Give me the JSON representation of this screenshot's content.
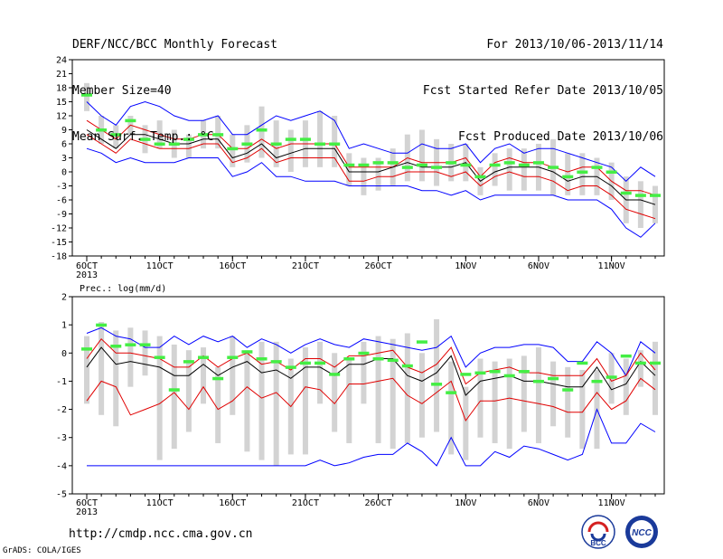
{
  "header": {
    "left": [
      "DERF/NCC/BCC Monthly Forecast",
      "Member Size=40",
      "Mean Surf. Temp.: °C"
    ],
    "right": [
      "For 2013/10/06-2013/11/14",
      "Fcst Started Refer Date 2013/10/05",
      "Fcst Produced Date 2013/10/06"
    ]
  },
  "footer": {
    "url": "http://cmdp.ncc.cma.gov.cn",
    "credit": "GrADS: COLA/IGES",
    "logo_left_text": "BCC",
    "logo_right_text": "NCC"
  },
  "colors": {
    "mean": "#000000",
    "spread": "#e00000",
    "range": "#0000ff",
    "observed": "#44ee44",
    "member_bar": "#d3d3d3"
  },
  "chart_data": [
    {
      "type": "line",
      "title": "",
      "ylabel": "Mean Surf. Temp.: °C",
      "ylim": [
        -18,
        24
      ],
      "yticks": [
        -18,
        -15,
        -12,
        -9,
        -6,
        -3,
        0,
        3,
        6,
        9,
        12,
        15,
        18,
        21,
        24
      ],
      "x": [
        "2013-10-06",
        "2013-10-07",
        "2013-10-08",
        "2013-10-09",
        "2013-10-10",
        "2013-10-11",
        "2013-10-12",
        "2013-10-13",
        "2013-10-14",
        "2013-10-15",
        "2013-10-16",
        "2013-10-17",
        "2013-10-18",
        "2013-10-19",
        "2013-10-20",
        "2013-10-21",
        "2013-10-22",
        "2013-10-23",
        "2013-10-24",
        "2013-10-25",
        "2013-10-26",
        "2013-10-27",
        "2013-10-28",
        "2013-10-29",
        "2013-10-30",
        "2013-10-31",
        "2013-11-01",
        "2013-11-02",
        "2013-11-03",
        "2013-11-04",
        "2013-11-05",
        "2013-11-06",
        "2013-11-07",
        "2013-11-08",
        "2013-11-09",
        "2013-11-10",
        "2013-11-11",
        "2013-11-12",
        "2013-11-13",
        "2013-11-14"
      ],
      "xtick_labels": [
        {
          "x": "2013-10-06",
          "label": "6OCT",
          "sub": "2013"
        },
        {
          "x": "2013-10-11",
          "label": "11OCT"
        },
        {
          "x": "2013-10-16",
          "label": "16OCT"
        },
        {
          "x": "2013-10-21",
          "label": "21OCT"
        },
        {
          "x": "2013-10-26",
          "label": "26OCT"
        },
        {
          "x": "2013-11-01",
          "label": "1NOV"
        },
        {
          "x": "2013-11-06",
          "label": "6NOV"
        },
        {
          "x": "2013-11-11",
          "label": "11NOV"
        }
      ],
      "series": [
        {
          "role": "max",
          "values": [
            15,
            12,
            10,
            14,
            15,
            14,
            12,
            11,
            11,
            12,
            8,
            8,
            10,
            12,
            11,
            12,
            13,
            11,
            5,
            6,
            5,
            4,
            4,
            6,
            5,
            5,
            6,
            2,
            5,
            6,
            4,
            5,
            5,
            4,
            3,
            2,
            1,
            -2,
            1,
            -1
          ]
        },
        {
          "role": "upper",
          "values": [
            11,
            9,
            7,
            10,
            9,
            8,
            7,
            7,
            8,
            8,
            5,
            5,
            7,
            5,
            6,
            6,
            6,
            6,
            1,
            1,
            1,
            1,
            3,
            2,
            2,
            2,
            3,
            -1,
            2,
            3,
            2,
            2,
            1,
            0,
            1,
            1,
            -2,
            -4,
            -4,
            -5
          ]
        },
        {
          "role": "mean",
          "values": [
            9,
            7,
            5,
            8,
            8,
            7,
            6,
            6,
            7,
            7,
            3,
            4,
            6,
            3,
            4,
            5,
            5,
            5,
            0,
            0,
            0,
            1,
            2,
            1,
            1,
            1,
            2,
            -2,
            0,
            1,
            1,
            1,
            0,
            -2,
            -1,
            -1,
            -3,
            -6,
            -6,
            -7
          ]
        },
        {
          "role": "lower",
          "values": [
            8,
            6,
            4,
            7,
            6,
            5,
            5,
            5,
            6,
            6,
            2,
            3,
            5,
            2,
            3,
            3,
            3,
            3,
            -2,
            -2,
            -1,
            -1,
            0,
            0,
            0,
            -1,
            0,
            -3,
            -1,
            0,
            -1,
            -1,
            -2,
            -4,
            -3,
            -3,
            -5,
            -8,
            -9,
            -10
          ]
        },
        {
          "role": "min",
          "values": [
            5,
            4,
            2,
            3,
            2,
            2,
            2,
            3,
            3,
            3,
            -1,
            0,
            2,
            -1,
            -1,
            -2,
            -2,
            -2,
            -3,
            -3,
            -3,
            -3,
            -3,
            -4,
            -4,
            -5,
            -4,
            -6,
            -5,
            -5,
            -5,
            -5,
            -5,
            -6,
            -6,
            -6,
            -8,
            -12,
            -14,
            -11
          ]
        },
        {
          "role": "observed",
          "values": [
            16.5,
            9,
            8,
            11,
            7,
            6,
            6,
            7,
            8,
            8,
            5,
            6,
            9,
            6,
            7,
            7,
            6,
            6,
            1.5,
            1.5,
            2,
            2,
            1,
            1.5,
            1,
            2,
            1.5,
            -1,
            1.5,
            2,
            1.5,
            2,
            1,
            -1,
            0,
            1,
            0,
            -4.5,
            -5,
            -5
          ]
        }
      ],
      "member_range": [
        [
          13,
          19
        ],
        [
          6,
          12
        ],
        [
          5,
          10
        ],
        [
          8,
          12
        ],
        [
          4,
          10
        ],
        [
          5,
          11
        ],
        [
          3,
          9
        ],
        [
          3,
          8
        ],
        [
          5,
          11
        ],
        [
          5,
          12
        ],
        [
          1,
          8
        ],
        [
          2,
          10
        ],
        [
          3,
          14
        ],
        [
          1,
          11
        ],
        [
          0,
          9
        ],
        [
          1,
          11
        ],
        [
          1,
          13
        ],
        [
          1,
          12
        ],
        [
          -3,
          4
        ],
        [
          -5,
          3
        ],
        [
          -4,
          3
        ],
        [
          -3,
          5
        ],
        [
          -2,
          8
        ],
        [
          -2,
          9
        ],
        [
          -3,
          7
        ],
        [
          -2,
          6
        ],
        [
          -2,
          6
        ],
        [
          -5,
          1
        ],
        [
          -3,
          4
        ],
        [
          -4,
          5
        ],
        [
          -4,
          5
        ],
        [
          -4,
          6
        ],
        [
          -5,
          7
        ],
        [
          -5,
          4
        ],
        [
          -5,
          4
        ],
        [
          -5,
          3
        ],
        [
          -6,
          2
        ],
        [
          -11,
          -1
        ],
        [
          -12,
          -2
        ],
        [
          -11,
          -3
        ]
      ]
    },
    {
      "type": "line",
      "title": "",
      "ylabel": "Prec.: log(mm/d)",
      "ylim": [
        -5,
        2
      ],
      "yticks": [
        -5,
        -4,
        -3,
        -2,
        -1,
        0,
        1,
        2
      ],
      "x": [
        "2013-10-06",
        "2013-10-07",
        "2013-10-08",
        "2013-10-09",
        "2013-10-10",
        "2013-10-11",
        "2013-10-12",
        "2013-10-13",
        "2013-10-14",
        "2013-10-15",
        "2013-10-16",
        "2013-10-17",
        "2013-10-18",
        "2013-10-19",
        "2013-10-20",
        "2013-10-21",
        "2013-10-22",
        "2013-10-23",
        "2013-10-24",
        "2013-10-25",
        "2013-10-26",
        "2013-10-27",
        "2013-10-28",
        "2013-10-29",
        "2013-10-30",
        "2013-10-31",
        "2013-11-01",
        "2013-11-02",
        "2013-11-03",
        "2013-11-04",
        "2013-11-05",
        "2013-11-06",
        "2013-11-07",
        "2013-11-08",
        "2013-11-09",
        "2013-11-10",
        "2013-11-11",
        "2013-11-12",
        "2013-11-13",
        "2013-11-14"
      ],
      "xtick_labels": [
        {
          "x": "2013-10-06",
          "label": "6OCT",
          "sub": "2013"
        },
        {
          "x": "2013-10-11",
          "label": "11OCT"
        },
        {
          "x": "2013-10-16",
          "label": "16OCT"
        },
        {
          "x": "2013-10-21",
          "label": "21OCT"
        },
        {
          "x": "2013-10-26",
          "label": "26OCT"
        },
        {
          "x": "2013-11-01",
          "label": "1NOV"
        },
        {
          "x": "2013-11-06",
          "label": "6NOV"
        },
        {
          "x": "2013-11-11",
          "label": "11NOV"
        }
      ],
      "series": [
        {
          "role": "max",
          "values": [
            0.7,
            0.9,
            0.6,
            0.5,
            0.2,
            0.2,
            0.6,
            0.3,
            0.6,
            0.4,
            0.6,
            0.2,
            0.5,
            0.3,
            0,
            0.3,
            0.5,
            0.3,
            0.2,
            0.5,
            0.4,
            0.3,
            0.2,
            0.1,
            0.2,
            0.6,
            -0.5,
            0,
            0.2,
            0.2,
            0.3,
            0.3,
            0.2,
            -0.3,
            -0.3,
            0.4,
            0,
            -0.8,
            0.4,
            0
          ]
        },
        {
          "role": "upper",
          "values": [
            -0.2,
            0.5,
            0,
            0,
            -0.1,
            -0.2,
            -0.5,
            -0.5,
            -0.1,
            -0.5,
            -0.2,
            0,
            -0.4,
            -0.3,
            -0.6,
            -0.2,
            -0.2,
            -0.5,
            -0.1,
            -0.1,
            0,
            0.1,
            -0.5,
            -0.7,
            -0.4,
            0.2,
            -1.1,
            -0.7,
            -0.6,
            -0.5,
            -0.7,
            -0.7,
            -0.8,
            -0.8,
            -0.8,
            -0.2,
            -1,
            -0.8,
            0,
            -0.6
          ]
        },
        {
          "role": "mean",
          "values": [
            -0.5,
            0.2,
            -0.4,
            -0.3,
            -0.4,
            -0.5,
            -0.8,
            -0.8,
            -0.4,
            -0.8,
            -0.5,
            -0.3,
            -0.7,
            -0.6,
            -0.9,
            -0.5,
            -0.5,
            -0.8,
            -0.4,
            -0.4,
            -0.2,
            -0.2,
            -0.8,
            -1,
            -0.7,
            -0.1,
            -1.5,
            -1,
            -0.9,
            -0.8,
            -1,
            -1,
            -1.1,
            -1.2,
            -1.2,
            -0.5,
            -1.3,
            -1.1,
            -0.3,
            -0.8
          ]
        },
        {
          "role": "lower",
          "values": [
            -1.7,
            -1,
            -1.2,
            -2.2,
            -2,
            -1.8,
            -1.4,
            -2,
            -1.2,
            -2,
            -1.7,
            -1.2,
            -1.6,
            -1.4,
            -1.9,
            -1.2,
            -1.3,
            -1.8,
            -1.1,
            -1.1,
            -1,
            -0.9,
            -1.5,
            -1.8,
            -1.4,
            -1,
            -2.4,
            -1.7,
            -1.7,
            -1.6,
            -1.7,
            -1.8,
            -1.9,
            -2.1,
            -2.1,
            -1.4,
            -2,
            -1.7,
            -0.9,
            -1.3
          ]
        },
        {
          "role": "min",
          "values": [
            -4,
            -4,
            -4,
            -4,
            -4,
            -4,
            -4,
            -4,
            -4,
            -4,
            -4,
            -4,
            -4,
            -4,
            -4,
            -4,
            -3.8,
            -4,
            -3.9,
            -3.7,
            -3.6,
            -3.6,
            -3.2,
            -3.5,
            -4,
            -3,
            -4,
            -4,
            -3.5,
            -3.7,
            -3.3,
            -3.4,
            -3.6,
            -3.8,
            -3.6,
            -2,
            -3.2,
            -3.2,
            -2.5,
            -2.8
          ]
        },
        {
          "role": "observed",
          "values": [
            0.15,
            1,
            0.25,
            0.3,
            0.3,
            -0.15,
            -1.3,
            -0.3,
            -0.15,
            -0.9,
            -0.15,
            0.05,
            -0.2,
            -0.3,
            -0.5,
            -0.35,
            -0.35,
            -0.75,
            -0.2,
            0,
            -0.2,
            -0.25,
            -0.45,
            0.4,
            -1.1,
            -1.4,
            -0.75,
            -0.7,
            -0.65,
            -0.8,
            -0.65,
            -1,
            -0.9,
            -1.3,
            -0.35,
            -1,
            -0.85,
            -0.1,
            -0.35,
            -0.35
          ]
        }
      ],
      "member_range": [
        [
          -1.8,
          0.6
        ],
        [
          -2.2,
          1.1
        ],
        [
          -2.6,
          0.8
        ],
        [
          -1.2,
          0.9
        ],
        [
          -0.8,
          0.8
        ],
        [
          -3.8,
          0.6
        ],
        [
          -3.4,
          0.3
        ],
        [
          -2.8,
          0.1
        ],
        [
          -1.8,
          0.2
        ],
        [
          -3.2,
          -0.5
        ],
        [
          -2.2,
          0.6
        ],
        [
          -3.5,
          0.1
        ],
        [
          -3.8,
          0.4
        ],
        [
          -4,
          0.4
        ],
        [
          -3.6,
          -0.2
        ],
        [
          -3.6,
          0.2
        ],
        [
          -1.8,
          0.4
        ],
        [
          -2.8,
          0
        ],
        [
          -3.2,
          -0.2
        ],
        [
          -1.8,
          0.4
        ],
        [
          -3.2,
          0.6
        ],
        [
          -3.4,
          0.5
        ],
        [
          -3.2,
          0.7
        ],
        [
          -3,
          0
        ],
        [
          -2.8,
          1.2
        ],
        [
          -3.6,
          -0.3
        ],
        [
          -3.8,
          -1.2
        ],
        [
          -3,
          -0.2
        ],
        [
          -3.2,
          -0.3
        ],
        [
          -3.4,
          -0.2
        ],
        [
          -2.8,
          -0.1
        ],
        [
          -3.2,
          0.2
        ],
        [
          -2.6,
          -0.3
        ],
        [
          -3,
          -0.5
        ],
        [
          -3.4,
          -0.6
        ],
        [
          -3.4,
          -0.6
        ],
        [
          -1.8,
          0
        ],
        [
          -2.2,
          -0.2
        ],
        [
          -1.2,
          0.1
        ],
        [
          -2.2,
          0.4
        ]
      ]
    }
  ]
}
